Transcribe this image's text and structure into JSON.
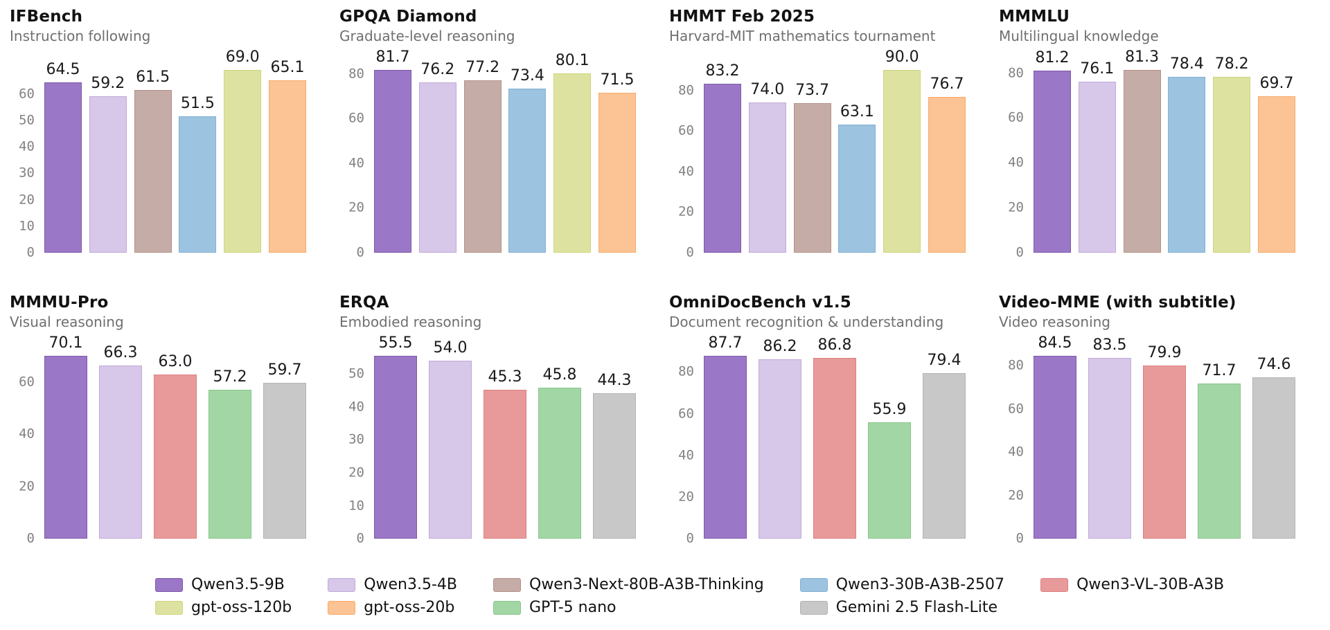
{
  "models": [
    {
      "name": "Qwen3.5-9B",
      "fill": "#9b77c7",
      "edge": "#7e58a8"
    },
    {
      "name": "Qwen3.5-4B",
      "fill": "#d7c7e8",
      "edge": "#c0aada"
    },
    {
      "name": "Qwen3-Next-80B-A3B-Thinking",
      "fill": "#c6aca6",
      "edge": "#b29288"
    },
    {
      "name": "Qwen3-30B-A3B-2507",
      "fill": "#9cc3df",
      "edge": "#82b1d3"
    },
    {
      "name": "Qwen3-VL-30B-A3B",
      "fill": "#e89a9a",
      "edge": "#dd7f81"
    },
    {
      "name": "gpt-oss-120b",
      "fill": "#dee2a0",
      "edge": "#ced57e"
    },
    {
      "name": "gpt-oss-20b",
      "fill": "#fcc394",
      "edge": "#f8ab6b"
    },
    {
      "name": "GPT-5 nano",
      "fill": "#a3d6a5",
      "edge": "#87c58b"
    },
    {
      "name": "Gemini 2.5 Flash-Lite",
      "fill": "#c8c8c8",
      "edge": "#b3b3b3"
    }
  ],
  "chart_data": [
    {
      "type": "bar",
      "title": "IFBench",
      "subtitle": "Instruction following",
      "categories": [
        "Qwen3.5-9B",
        "Qwen3.5-4B",
        "Qwen3-Next-80B-A3B-Thinking",
        "Qwen3-30B-A3B-2507",
        "gpt-oss-120b",
        "gpt-oss-20b"
      ],
      "values": [
        64.5,
        59.2,
        61.5,
        51.5,
        69.0,
        65.1
      ],
      "xlabel": "",
      "ylabel": "",
      "yticks": [
        0,
        10,
        20,
        30,
        40,
        50,
        60
      ],
      "ylim": [
        0,
        72.5
      ],
      "grid": false
    },
    {
      "type": "bar",
      "title": "GPQA Diamond",
      "subtitle": "Graduate-level reasoning",
      "categories": [
        "Qwen3.5-9B",
        "Qwen3.5-4B",
        "Qwen3-Next-80B-A3B-Thinking",
        "Qwen3-30B-A3B-2507",
        "gpt-oss-120b",
        "gpt-oss-20b"
      ],
      "values": [
        81.7,
        76.2,
        77.2,
        73.4,
        80.1,
        71.5
      ],
      "xlabel": "",
      "ylabel": "",
      "yticks": [
        0,
        20,
        40,
        60,
        80
      ],
      "ylim": [
        0,
        85.8
      ],
      "grid": false
    },
    {
      "type": "bar",
      "title": "HMMT Feb 2025",
      "subtitle": "Harvard-MIT mathematics tournament",
      "categories": [
        "Qwen3.5-9B",
        "Qwen3.5-4B",
        "Qwen3-Next-80B-A3B-Thinking",
        "Qwen3-30B-A3B-2507",
        "gpt-oss-120b",
        "gpt-oss-20b"
      ],
      "values": [
        83.2,
        74.0,
        73.7,
        63.1,
        90.0,
        76.7
      ],
      "xlabel": "",
      "ylabel": "",
      "yticks": [
        0,
        20,
        40,
        60,
        80
      ],
      "ylim": [
        0,
        94.5
      ],
      "grid": false
    },
    {
      "type": "bar",
      "title": "MMMLU",
      "subtitle": "Multilingual knowledge",
      "categories": [
        "Qwen3.5-9B",
        "Qwen3.5-4B",
        "Qwen3-Next-80B-A3B-Thinking",
        "Qwen3-30B-A3B-2507",
        "gpt-oss-120b",
        "gpt-oss-20b"
      ],
      "values": [
        81.2,
        76.1,
        81.3,
        78.4,
        78.2,
        69.7
      ],
      "xlabel": "",
      "ylabel": "",
      "yticks": [
        0,
        20,
        40,
        60,
        80
      ],
      "ylim": [
        0,
        85.4
      ],
      "grid": false
    },
    {
      "type": "bar",
      "title": "MMMU-Pro",
      "subtitle": "Visual reasoning",
      "categories": [
        "Qwen3.5-9B",
        "Qwen3.5-4B",
        "Qwen3-VL-30B-A3B",
        "GPT-5 nano",
        "Gemini 2.5 Flash-Lite"
      ],
      "values": [
        70.1,
        66.3,
        63.0,
        57.2,
        59.7
      ],
      "xlabel": "",
      "ylabel": "",
      "yticks": [
        0,
        20,
        40,
        60
      ],
      "ylim": [
        0,
        73.6
      ],
      "grid": false
    },
    {
      "type": "bar",
      "title": "ERQA",
      "subtitle": "Embodied reasoning",
      "categories": [
        "Qwen3.5-9B",
        "Qwen3.5-4B",
        "Qwen3-VL-30B-A3B",
        "GPT-5 nano",
        "Gemini 2.5 Flash-Lite"
      ],
      "values": [
        55.5,
        54.0,
        45.3,
        45.8,
        44.3
      ],
      "xlabel": "",
      "ylabel": "",
      "yticks": [
        0,
        10,
        20,
        30,
        40,
        50
      ],
      "ylim": [
        0,
        58.3
      ],
      "grid": false
    },
    {
      "type": "bar",
      "title": "OmniDocBench v1.5",
      "subtitle": "Document recognition & understanding",
      "categories": [
        "Qwen3.5-9B",
        "Qwen3.5-4B",
        "Qwen3-VL-30B-A3B",
        "GPT-5 nano",
        "Gemini 2.5 Flash-Lite"
      ],
      "values": [
        87.7,
        86.2,
        86.8,
        55.9,
        79.4
      ],
      "xlabel": "",
      "ylabel": "",
      "yticks": [
        0,
        20,
        40,
        60,
        80
      ],
      "ylim": [
        0,
        92.1
      ],
      "grid": false
    },
    {
      "type": "bar",
      "title": "Video-MME (with subtitle)",
      "subtitle": "Video reasoning",
      "categories": [
        "Qwen3.5-9B",
        "Qwen3.5-4B",
        "Qwen3-VL-30B-A3B",
        "GPT-5 nano",
        "Gemini 2.5 Flash-Lite"
      ],
      "values": [
        84.5,
        83.5,
        79.9,
        71.7,
        74.6
      ],
      "xlabel": "",
      "ylabel": "",
      "yticks": [
        0,
        20,
        40,
        60,
        80
      ],
      "ylim": [
        0,
        88.7
      ],
      "grid": false
    }
  ],
  "legend": {
    "position": "bottom",
    "columns": [
      [
        "Qwen3.5-9B",
        "gpt-oss-120b"
      ],
      [
        "Qwen3.5-4B",
        "gpt-oss-20b"
      ],
      [
        "Qwen3-Next-80B-A3B-Thinking",
        "GPT-5 nano"
      ],
      [
        "Qwen3-30B-A3B-2507",
        "Gemini 2.5 Flash-Lite"
      ],
      [
        "Qwen3-VL-30B-A3B"
      ]
    ]
  }
}
